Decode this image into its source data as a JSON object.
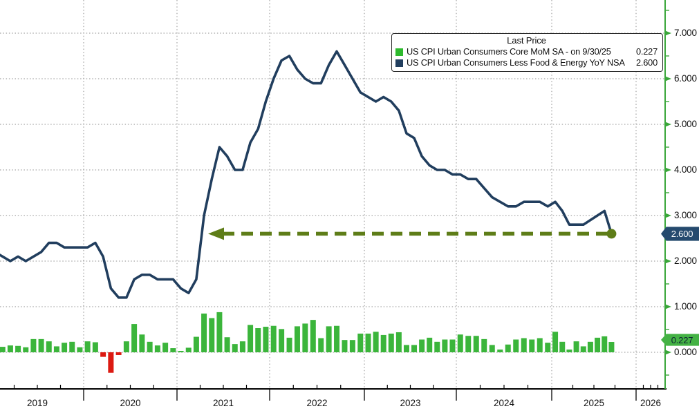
{
  "legend": {
    "title": "Last Price",
    "rows": [
      {
        "label": "US CPI Urban Consumers Core MoM SA -  on 9/30/25",
        "value": "0.227"
      },
      {
        "label": "US CPI Urban Consumers Less Food & Energy YoY NSA",
        "value": "2.600"
      }
    ]
  },
  "badges": {
    "yoy": "2.600",
    "mom": "0.227"
  },
  "colors": {
    "line_navy": "#213e5e",
    "bar_green": "#3bb53b",
    "bar_red": "#dc1a12",
    "swatch_green": "#2eba2e",
    "axis_green": "#3aa63a",
    "badge_navy": "#254a6e",
    "badge_green": "#44b244",
    "arrow_olive": "#5e7d18",
    "gridline_gray": "#8c8c8c",
    "axis_black": "#000000"
  },
  "chart_data": {
    "type": "combo",
    "x": {
      "unit": "month",
      "start": "2019-01",
      "end": "2025-09"
    },
    "x_axis": {
      "tick_years": [
        "2019",
        "2020",
        "2021",
        "2022",
        "2023",
        "2024",
        "2025",
        "2026"
      ]
    },
    "y_axis": {
      "min": 0,
      "max": 7,
      "minor_step": 0.5,
      "tick_labels": [
        "0.000",
        "1.000",
        "2.000",
        "3.000",
        "4.000",
        "5.000",
        "6.000",
        "7.000"
      ]
    },
    "series": [
      {
        "name": "US CPI Urban Consumers Less Food & Energy YoY NSA",
        "type": "line",
        "last_value": 2.6,
        "values": [
          2.2,
          2.1,
          2.0,
          2.1,
          2.0,
          2.1,
          2.2,
          2.4,
          2.4,
          2.3,
          2.3,
          2.3,
          2.3,
          2.4,
          2.1,
          1.4,
          1.2,
          1.2,
          1.6,
          1.7,
          1.7,
          1.6,
          1.6,
          1.6,
          1.4,
          1.3,
          1.6,
          3.0,
          3.8,
          4.5,
          4.3,
          4.0,
          4.0,
          4.6,
          4.9,
          5.5,
          6.0,
          6.4,
          6.5,
          6.2,
          6.0,
          5.9,
          5.9,
          6.3,
          6.6,
          6.3,
          6.0,
          5.7,
          5.6,
          5.5,
          5.6,
          5.5,
          5.3,
          4.8,
          4.7,
          4.3,
          4.1,
          4.0,
          4.0,
          3.9,
          3.9,
          3.8,
          3.8,
          3.6,
          3.4,
          3.3,
          3.2,
          3.2,
          3.3,
          3.3,
          3.3,
          3.2,
          3.3,
          3.1,
          2.8,
          2.8,
          2.8,
          2.9,
          3.0,
          3.1,
          2.6
        ]
      },
      {
        "name": "US CPI Urban Consumers Core MoM SA",
        "type": "bar",
        "last_value": 0.227,
        "last_date": "9/30/25",
        "values": [
          0.24,
          0.12,
          0.15,
          0.14,
          0.11,
          0.29,
          0.29,
          0.24,
          0.13,
          0.21,
          0.23,
          0.11,
          0.24,
          0.22,
          -0.1,
          -0.45,
          -0.06,
          0.24,
          0.62,
          0.39,
          0.23,
          0.15,
          0.21,
          0.09,
          0.03,
          0.1,
          0.34,
          0.85,
          0.75,
          0.88,
          0.33,
          0.18,
          0.24,
          0.6,
          0.53,
          0.56,
          0.58,
          0.51,
          0.32,
          0.57,
          0.63,
          0.71,
          0.31,
          0.57,
          0.58,
          0.27,
          0.27,
          0.41,
          0.41,
          0.45,
          0.38,
          0.41,
          0.44,
          0.16,
          0.16,
          0.28,
          0.32,
          0.23,
          0.28,
          0.28,
          0.39,
          0.36,
          0.36,
          0.29,
          0.16,
          0.06,
          0.17,
          0.28,
          0.31,
          0.28,
          0.31,
          0.21,
          0.45,
          0.23,
          0.06,
          0.24,
          0.13,
          0.23,
          0.32,
          0.35,
          0.227
        ]
      }
    ],
    "annotation": {
      "type": "dashed-arrow-left",
      "level": 2.6,
      "from": "2021-04",
      "to": "2025-09"
    }
  }
}
